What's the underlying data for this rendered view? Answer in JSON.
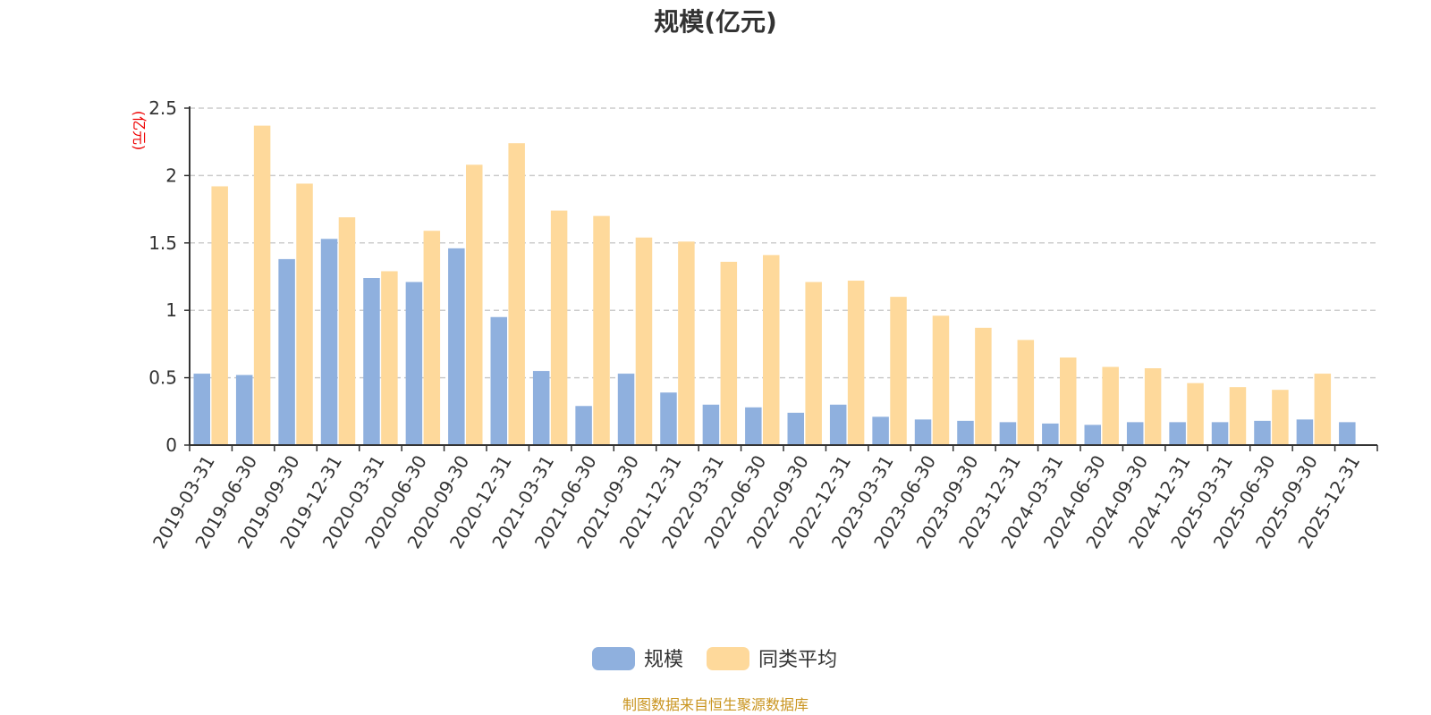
{
  "chart_data": {
    "type": "bar",
    "title": "规模(亿元)",
    "ylabel": "(亿元)",
    "ylim": [
      0,
      2.5
    ],
    "yticks": [
      "0",
      "0.5",
      "1",
      "1.5",
      "2",
      "2.5"
    ],
    "grid": true,
    "legend_position": "bottom-center",
    "categories": [
      "2019-03-31",
      "2019-06-30",
      "2019-09-30",
      "2019-12-31",
      "2020-03-31",
      "2020-06-30",
      "2020-09-30",
      "2020-12-31",
      "2021-03-31",
      "2021-06-30",
      "2021-09-30",
      "2021-12-31",
      "2022-03-31",
      "2022-06-30",
      "2022-09-30",
      "2022-12-31",
      "2023-03-31",
      "2023-06-30",
      "2023-09-30",
      "2023-12-31",
      "2024-03-31",
      "2024-06-30",
      "2024-09-30",
      "2024-12-31",
      "2025-03-31",
      "2025-06-30",
      "2025-09-30",
      "2025-12-31"
    ],
    "series": [
      {
        "name": "规模",
        "color": "#8fb0de",
        "values": [
          0.53,
          0.52,
          1.38,
          1.53,
          1.24,
          1.21,
          1.46,
          0.95,
          0.55,
          0.29,
          0.53,
          0.39,
          0.3,
          0.28,
          0.24,
          0.3,
          0.21,
          0.19,
          0.18,
          0.17,
          0.16,
          0.15,
          0.17,
          0.17,
          0.17,
          0.18,
          0.19,
          0.17
        ]
      },
      {
        "name": "同类平均",
        "color": "#fed99b",
        "values": [
          1.92,
          2.37,
          1.94,
          1.69,
          1.29,
          1.59,
          2.08,
          2.24,
          1.74,
          1.7,
          1.54,
          1.51,
          1.36,
          1.41,
          1.21,
          1.22,
          1.1,
          0.96,
          0.87,
          0.78,
          0.65,
          0.58,
          0.57,
          0.46,
          0.43,
          0.41,
          0.53,
          null
        ]
      }
    ]
  },
  "source_note": "制图数据来自恒生聚源数据库"
}
